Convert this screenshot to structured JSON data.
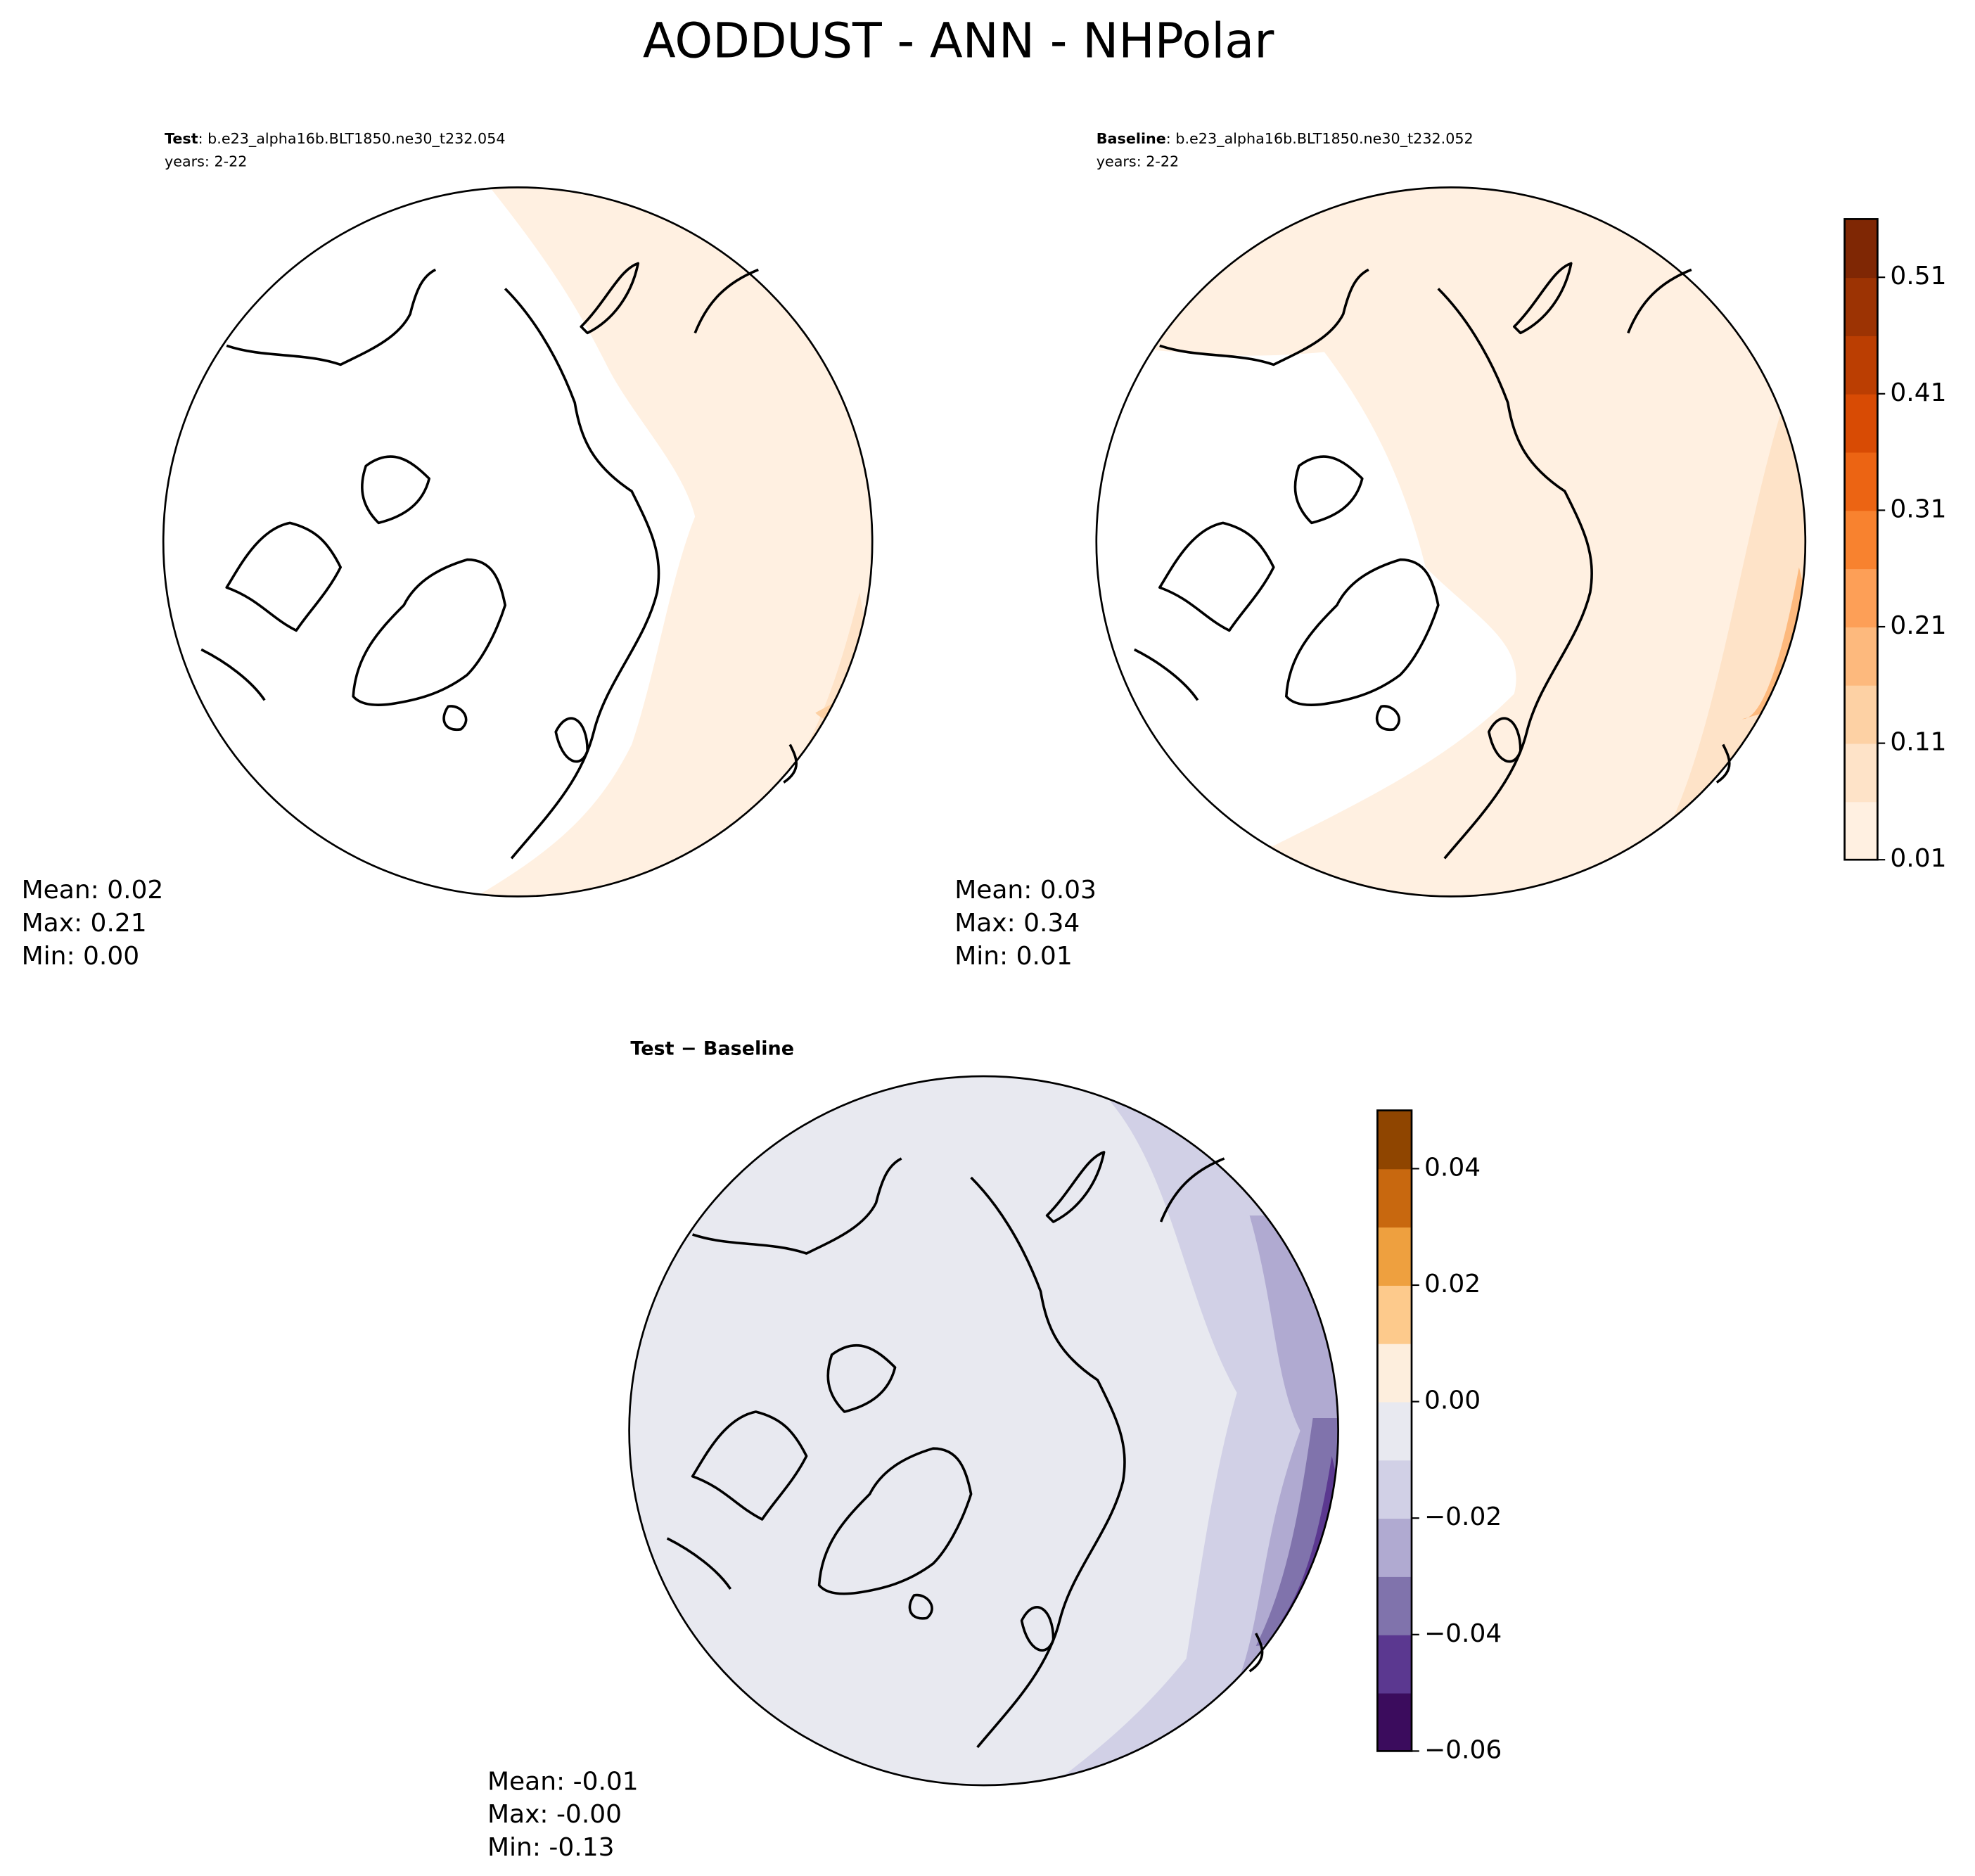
{
  "chart_data": {
    "type": "polar-maps",
    "title": "AODDUST - ANN - NHPolar",
    "panels": [
      {
        "label": "Test",
        "case": ": b.e23_alpha16b.BLT1850.ne30_t232.054",
        "years": "years: 2-22",
        "stats": [
          "Mean:  0.02",
          "Max:  0.21",
          "Min:  0.00"
        ]
      },
      {
        "label": "Baseline",
        "case": ": b.e23_alpha16b.BLT1850.ne30_t232.052",
        "years": "years: 2-22",
        "stats": [
          "Mean:  0.03",
          "Max:  0.34",
          "Min:  0.01"
        ]
      },
      {
        "label": "Test − Baseline",
        "stats": [
          "Mean: -0.01",
          "Max: -0.00",
          "Min: -0.13"
        ]
      }
    ],
    "colorbars": [
      {
        "lim": [
          0.01,
          0.56
        ],
        "ticks": [
          0.01,
          0.11,
          0.21,
          0.31,
          0.41,
          0.51
        ],
        "colors": [
          "#fff0e1",
          "#fee3c8",
          "#fdd1a4",
          "#fdb97d",
          "#fd9f57",
          "#f8822f",
          "#ec6413",
          "#d84b04",
          "#bb3e02",
          "#9c3303",
          "#7f2704"
        ]
      },
      {
        "lim": [
          -0.06,
          0.05
        ],
        "ticks": [
          {
            "value": -0.06,
            "label": "−0.06"
          },
          {
            "value": -0.04,
            "label": "−0.04"
          },
          {
            "value": -0.02,
            "label": "−0.02"
          },
          {
            "value": 0,
            "label": "0.00"
          },
          {
            "value": 0.02,
            "label": "0.02"
          },
          {
            "value": 0.04,
            "label": "0.04"
          }
        ],
        "colors": [
          "#3b0c5d",
          "#5b3890",
          "#8073ac",
          "#b0aad1",
          "#d1d0e6",
          "#e8e9f0",
          "#fdeedd",
          "#fdca8c",
          "#eea03f",
          "#c8680f",
          "#8f4500"
        ]
      }
    ]
  }
}
